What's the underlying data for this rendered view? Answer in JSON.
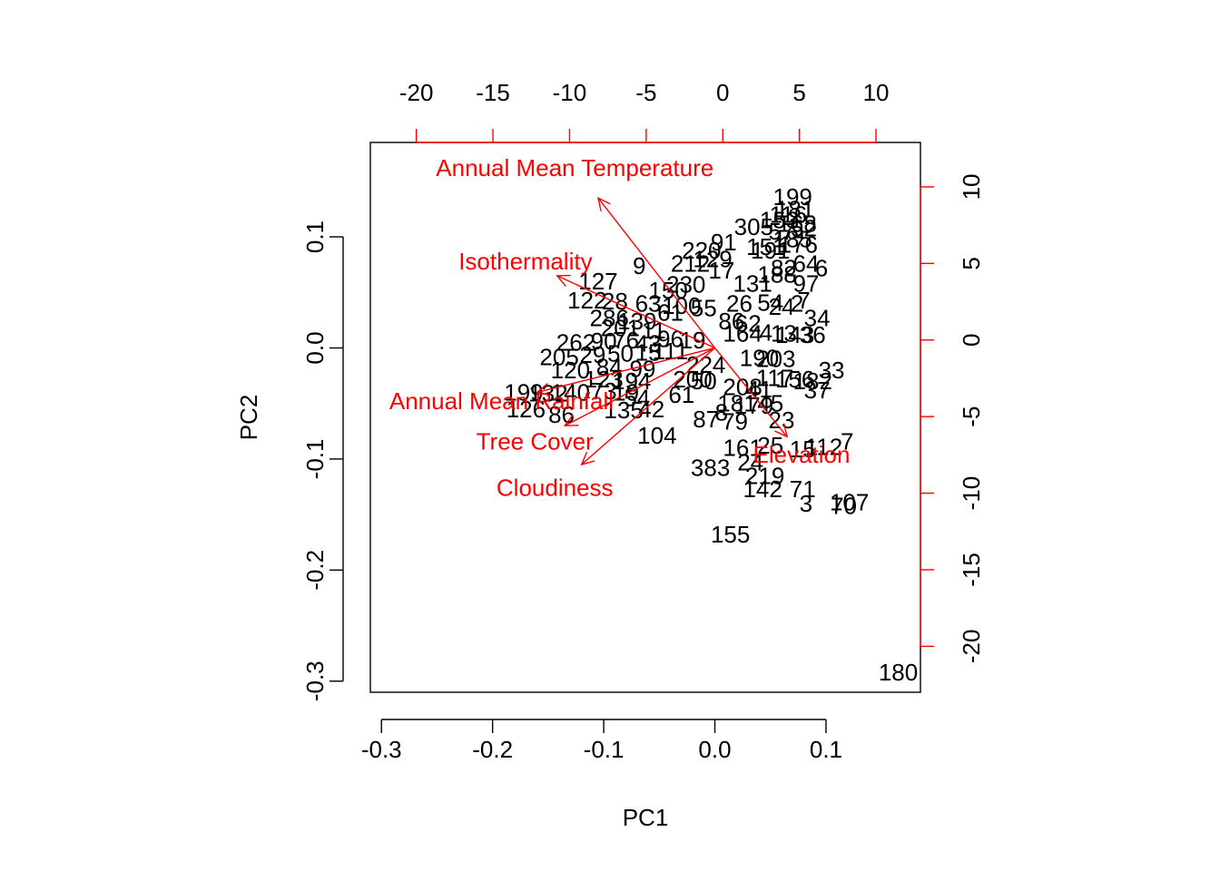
{
  "chart_data": {
    "type": "scatter",
    "title": "",
    "xlabel": "PC1",
    "ylabel": "PC2",
    "xlim": [
      -0.31,
      0.185
    ],
    "ylim": [
      -0.31,
      0.185
    ],
    "x_ticks": [
      "-0.3",
      "-0.2",
      "-0.1",
      "0.0",
      "0.1"
    ],
    "y_ticks": [
      "-0.3",
      "-0.2",
      "-0.1",
      "0.0",
      "0.1"
    ],
    "top_axis": {
      "range": [
        -23.0,
        12.9
      ],
      "ticks": [
        "-20",
        "-15",
        "-10",
        "-5",
        "0",
        "5",
        "10"
      ],
      "color": "#ff0000"
    },
    "right_axis": {
      "range": [
        -23.0,
        12.9
      ],
      "ticks": [
        "-20",
        "-15",
        "-10",
        "-5",
        "0",
        "5",
        "10"
      ],
      "color": "#ff0000"
    },
    "point_color": "#000000",
    "arrow_color": "#ff0000",
    "points": [
      {
        "label": "199",
        "x": 0.07,
        "y": 0.136
      },
      {
        "label": "181",
        "x": 0.072,
        "y": 0.125
      },
      {
        "label": "116",
        "x": 0.066,
        "y": 0.12
      },
      {
        "label": "153",
        "x": 0.058,
        "y": 0.115
      },
      {
        "label": "168",
        "x": 0.074,
        "y": 0.112
      },
      {
        "label": "305",
        "x": 0.035,
        "y": 0.109
      },
      {
        "label": "57",
        "x": 0.06,
        "y": 0.105
      },
      {
        "label": "52",
        "x": 0.08,
        "y": 0.108
      },
      {
        "label": "185",
        "x": 0.07,
        "y": 0.098
      },
      {
        "label": "176",
        "x": 0.075,
        "y": 0.093
      },
      {
        "label": "91",
        "x": 0.008,
        "y": 0.095
      },
      {
        "label": "151",
        "x": 0.046,
        "y": 0.091
      },
      {
        "label": "191",
        "x": 0.05,
        "y": 0.088
      },
      {
        "label": "220",
        "x": -0.012,
        "y": 0.088
      },
      {
        "label": "129",
        "x": -0.002,
        "y": 0.08
      },
      {
        "label": "212",
        "x": -0.022,
        "y": 0.076
      },
      {
        "label": "9",
        "x": -0.068,
        "y": 0.074
      },
      {
        "label": "17",
        "x": 0.006,
        "y": 0.07
      },
      {
        "label": "82",
        "x": 0.062,
        "y": 0.072
      },
      {
        "label": "64",
        "x": 0.082,
        "y": 0.076
      },
      {
        "label": "6",
        "x": 0.096,
        "y": 0.072
      },
      {
        "label": "188",
        "x": 0.056,
        "y": 0.066
      },
      {
        "label": "131",
        "x": 0.034,
        "y": 0.058
      },
      {
        "label": "127",
        "x": -0.105,
        "y": 0.06
      },
      {
        "label": "230",
        "x": -0.026,
        "y": 0.057
      },
      {
        "label": "150",
        "x": -0.042,
        "y": 0.052
      },
      {
        "label": "97",
        "x": 0.082,
        "y": 0.058
      },
      {
        "label": "122",
        "x": -0.115,
        "y": 0.043
      },
      {
        "label": "28",
        "x": -0.09,
        "y": 0.042
      },
      {
        "label": "63",
        "x": -0.06,
        "y": 0.04
      },
      {
        "label": "26",
        "x": 0.022,
        "y": 0.04
      },
      {
        "label": "54",
        "x": 0.05,
        "y": 0.041
      },
      {
        "label": "24",
        "x": 0.06,
        "y": 0.037
      },
      {
        "label": "7",
        "x": 0.08,
        "y": 0.043
      },
      {
        "label": "2",
        "x": 0.074,
        "y": 0.04
      },
      {
        "label": "100",
        "x": -0.03,
        "y": 0.038
      },
      {
        "label": "55",
        "x": -0.01,
        "y": 0.036
      },
      {
        "label": "61",
        "x": -0.04,
        "y": 0.032
      },
      {
        "label": "286",
        "x": -0.095,
        "y": 0.027
      },
      {
        "label": "139",
        "x": -0.07,
        "y": 0.024
      },
      {
        "label": "86",
        "x": 0.015,
        "y": 0.024
      },
      {
        "label": "62",
        "x": 0.03,
        "y": 0.022
      },
      {
        "label": "34",
        "x": 0.092,
        "y": 0.027
      },
      {
        "label": "201",
        "x": -0.085,
        "y": 0.018
      },
      {
        "label": "11",
        "x": -0.055,
        "y": 0.016
      },
      {
        "label": "164",
        "x": 0.025,
        "y": 0.013
      },
      {
        "label": "4",
        "x": 0.046,
        "y": 0.014
      },
      {
        "label": "13",
        "x": 0.062,
        "y": 0.013
      },
      {
        "label": "143",
        "x": 0.072,
        "y": 0.012
      },
      {
        "label": "36",
        "x": 0.088,
        "y": 0.012
      },
      {
        "label": "262",
        "x": -0.125,
        "y": 0.005
      },
      {
        "label": "90",
        "x": -0.1,
        "y": 0.006
      },
      {
        "label": "76",
        "x": -0.08,
        "y": 0.007
      },
      {
        "label": "43",
        "x": -0.06,
        "y": 0.004
      },
      {
        "label": "96",
        "x": -0.04,
        "y": 0.008
      },
      {
        "label": "19",
        "x": -0.02,
        "y": 0.007
      },
      {
        "label": "205",
        "x": -0.14,
        "y": -0.008
      },
      {
        "label": "29",
        "x": -0.11,
        "y": -0.006
      },
      {
        "label": "50",
        "x": -0.085,
        "y": -0.005
      },
      {
        "label": "15",
        "x": -0.06,
        "y": -0.004
      },
      {
        "label": "111",
        "x": -0.04,
        "y": -0.003
      },
      {
        "label": "190",
        "x": 0.04,
        "y": -0.009
      },
      {
        "label": "203",
        "x": 0.055,
        "y": -0.01
      },
      {
        "label": "224",
        "x": -0.008,
        "y": -0.015
      },
      {
        "label": "120",
        "x": -0.13,
        "y": -0.02
      },
      {
        "label": "84",
        "x": -0.095,
        "y": -0.017
      },
      {
        "label": "99",
        "x": -0.065,
        "y": -0.019
      },
      {
        "label": "33",
        "x": 0.105,
        "y": -0.02
      },
      {
        "label": "123",
        "x": -0.1,
        "y": -0.028
      },
      {
        "label": "194",
        "x": -0.075,
        "y": -0.03
      },
      {
        "label": "200",
        "x": -0.02,
        "y": -0.028
      },
      {
        "label": "50",
        "x": -0.01,
        "y": -0.03
      },
      {
        "label": "117",
        "x": 0.054,
        "y": -0.027
      },
      {
        "label": "156",
        "x": 0.072,
        "y": -0.028
      },
      {
        "label": "182",
        "x": 0.088,
        "y": -0.03
      },
      {
        "label": "199",
        "x": -0.172,
        "y": -0.04
      },
      {
        "label": "132",
        "x": -0.15,
        "y": -0.041
      },
      {
        "label": "140",
        "x": -0.13,
        "y": -0.04
      },
      {
        "label": "73",
        "x": -0.1,
        "y": -0.039
      },
      {
        "label": "19",
        "x": -0.08,
        "y": -0.04
      },
      {
        "label": "61",
        "x": -0.03,
        "y": -0.042
      },
      {
        "label": "208",
        "x": 0.025,
        "y": -0.035
      },
      {
        "label": "41",
        "x": 0.04,
        "y": -0.037
      },
      {
        "label": "37",
        "x": 0.092,
        "y": -0.038
      },
      {
        "label": "54",
        "x": -0.07,
        "y": -0.045
      },
      {
        "label": "126",
        "x": -0.17,
        "y": -0.055
      },
      {
        "label": "86",
        "x": -0.138,
        "y": -0.06
      },
      {
        "label": "135",
        "x": -0.082,
        "y": -0.056
      },
      {
        "label": "42",
        "x": -0.057,
        "y": -0.055
      },
      {
        "label": "8",
        "x": 0.006,
        "y": -0.058
      },
      {
        "label": "181",
        "x": 0.02,
        "y": -0.05
      },
      {
        "label": "179",
        "x": 0.035,
        "y": -0.052
      },
      {
        "label": "45",
        "x": 0.05,
        "y": -0.05
      },
      {
        "label": "87",
        "x": -0.008,
        "y": -0.064
      },
      {
        "label": "79",
        "x": 0.018,
        "y": -0.066
      },
      {
        "label": "23",
        "x": 0.06,
        "y": -0.065
      },
      {
        "label": "104",
        "x": -0.052,
        "y": -0.079
      },
      {
        "label": "112",
        "x": 0.098,
        "y": -0.089
      },
      {
        "label": "7",
        "x": 0.119,
        "y": -0.084
      },
      {
        "label": "15",
        "x": 0.079,
        "y": -0.091
      },
      {
        "label": "161",
        "x": 0.025,
        "y": -0.09
      },
      {
        "label": "25",
        "x": 0.05,
        "y": -0.088
      },
      {
        "label": "383",
        "x": -0.004,
        "y": -0.108
      },
      {
        "label": "24",
        "x": 0.032,
        "y": -0.103
      },
      {
        "label": "219",
        "x": 0.045,
        "y": -0.115
      },
      {
        "label": "142",
        "x": 0.043,
        "y": -0.127
      },
      {
        "label": "71",
        "x": 0.079,
        "y": -0.127
      },
      {
        "label": "3",
        "x": 0.082,
        "y": -0.14
      },
      {
        "label": "107",
        "x": 0.121,
        "y": -0.139
      },
      {
        "label": "70",
        "x": 0.116,
        "y": -0.142
      },
      {
        "label": "155",
        "x": 0.014,
        "y": -0.168
      },
      {
        "label": "180",
        "x": 0.165,
        "y": -0.292
      }
    ],
    "vectors": [
      {
        "name": "Annual Mean Temperature",
        "x": -0.105,
        "y": 0.135
      },
      {
        "name": "Isothermality",
        "x": -0.142,
        "y": 0.065
      },
      {
        "name": "Annual Mean Rainfall",
        "x": -0.16,
        "y": -0.04
      },
      {
        "name": "Tree Cover",
        "x": -0.135,
        "y": -0.07
      },
      {
        "name": "Cloudiness",
        "x": -0.12,
        "y": -0.105
      },
      {
        "name": "Elevation",
        "x": 0.065,
        "y": -0.08
      }
    ]
  }
}
